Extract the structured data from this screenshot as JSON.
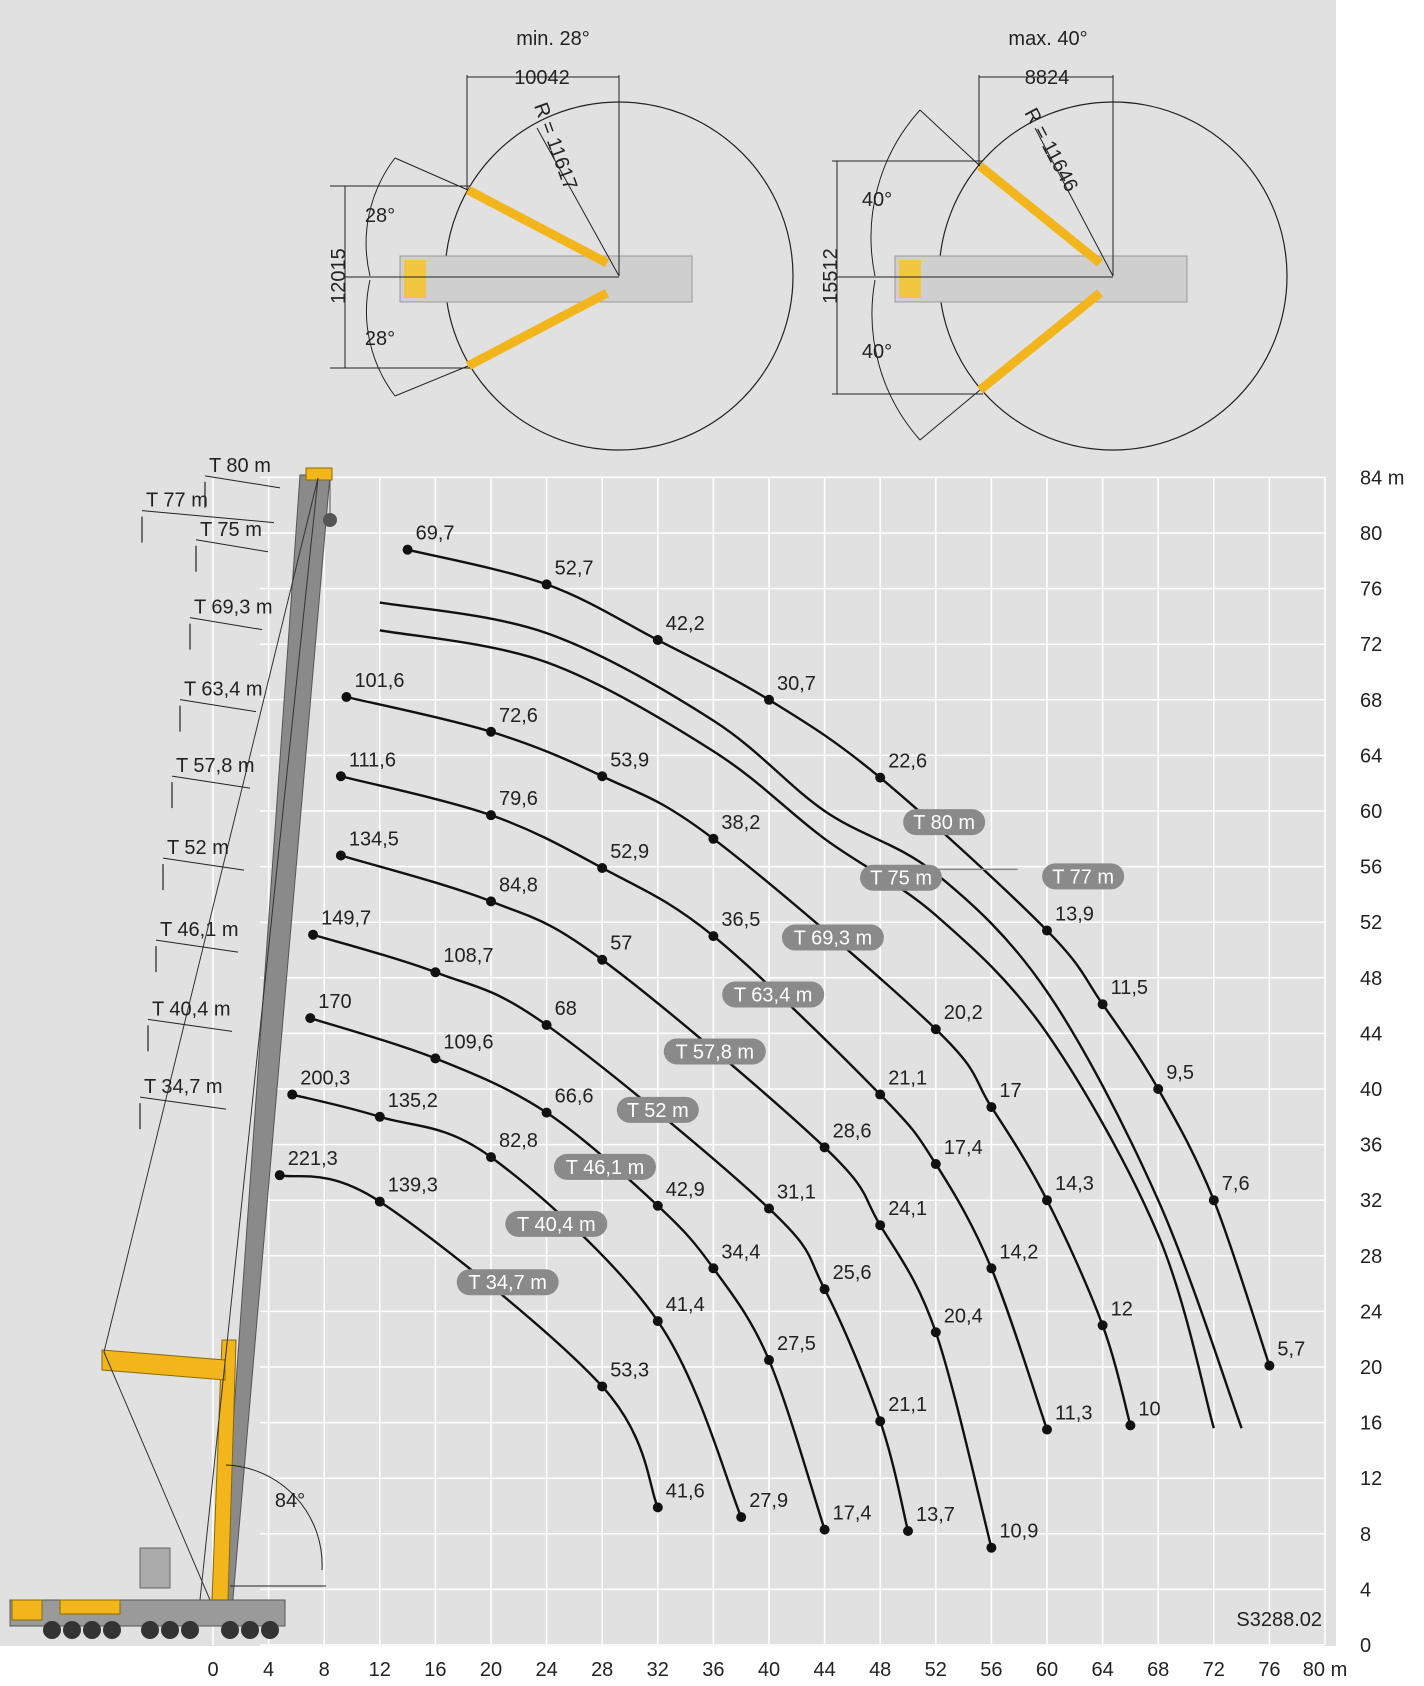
{
  "drawing_id": "S3288.02",
  "top_views": [
    {
      "angle_label": "min. 28°",
      "width_dim": "10042",
      "radius_label": "R = 11617",
      "height_dim": "12015",
      "upper_angle": "28°",
      "lower_angle": "28°"
    },
    {
      "angle_label": "max. 40°",
      "width_dim": "8824",
      "radius_label": "R = 11646",
      "height_dim": "15512",
      "upper_angle": "40°",
      "lower_angle": "40°"
    }
  ],
  "boom_angle": "84°",
  "boom_markers": [
    "T 80 m",
    "T 77 m",
    "T 75 m",
    "T 69,3 m",
    "T 63,4 m",
    "T 57,8 m",
    "T 52 m",
    "T 46,1 m",
    "T 40,4 m",
    "T 34,7 m"
  ],
  "chart_data": {
    "type": "line",
    "x_ticks": [
      "0",
      "4",
      "8",
      "12",
      "16",
      "20",
      "24",
      "28",
      "32",
      "36",
      "40",
      "44",
      "48",
      "52",
      "56",
      "60",
      "64",
      "68",
      "72",
      "76",
      "80 m"
    ],
    "y_ticks": [
      "0",
      "4",
      "8",
      "12",
      "16",
      "20",
      "24",
      "28",
      "32",
      "36",
      "40",
      "44",
      "48",
      "52",
      "56",
      "60",
      "64",
      "68",
      "72",
      "76",
      "80",
      "84 m"
    ],
    "xlim": [
      0,
      80
    ],
    "ylim": [
      0,
      84
    ],
    "series": [
      {
        "name": "T 80 m",
        "points": [
          [
            14,
            78.8,
            "69,7"
          ],
          [
            24,
            76.3,
            "52,7"
          ],
          [
            32,
            72.3,
            "42,2"
          ],
          [
            40,
            68.0,
            "30,7"
          ],
          [
            48,
            62.4,
            "22,6"
          ],
          [
            60,
            51.4,
            "13,9"
          ],
          [
            64,
            46.1,
            "11,5"
          ],
          [
            68,
            40.0,
            "9,5"
          ],
          [
            72,
            32.0,
            "7,6"
          ],
          [
            76,
            20.1,
            "5,7"
          ]
        ]
      },
      {
        "name": "T 77 m",
        "points": [
          [
            12,
            75.0,
            ""
          ],
          [
            24,
            72.8,
            ""
          ],
          [
            36,
            66.5,
            ""
          ],
          [
            44,
            60.0,
            ""
          ],
          [
            52,
            55.5,
            ""
          ],
          [
            60,
            47.0,
            ""
          ],
          [
            68,
            32.0,
            ""
          ],
          [
            74,
            15.6,
            ""
          ]
        ]
      },
      {
        "name": "T 75 m",
        "points": [
          [
            12,
            73.0,
            ""
          ],
          [
            24,
            70.7,
            ""
          ],
          [
            36,
            64.3,
            ""
          ],
          [
            44,
            58.0,
            ""
          ],
          [
            52,
            52.5,
            ""
          ],
          [
            60,
            44.0,
            ""
          ],
          [
            68,
            29.5,
            ""
          ],
          [
            72,
            15.6,
            ""
          ]
        ]
      },
      {
        "name": "T 69,3 m",
        "points": [
          [
            9.6,
            68.2,
            "101,6"
          ],
          [
            20,
            65.7,
            "72,6"
          ],
          [
            28,
            62.5,
            "53,9"
          ],
          [
            36,
            58.0,
            "38,2"
          ],
          [
            52,
            44.3,
            "20,2"
          ],
          [
            56,
            38.7,
            "17"
          ],
          [
            60,
            32.0,
            "14,3"
          ],
          [
            64,
            23.0,
            "12"
          ],
          [
            66,
            15.8,
            "10"
          ]
        ]
      },
      {
        "name": "T 63,4 m",
        "points": [
          [
            9.2,
            62.5,
            "111,6"
          ],
          [
            20,
            59.7,
            "79,6"
          ],
          [
            28,
            55.9,
            "52,9"
          ],
          [
            36,
            51.0,
            "36,5"
          ],
          [
            48,
            39.6,
            "21,1"
          ],
          [
            52,
            34.6,
            "17,4"
          ],
          [
            56,
            27.1,
            "14,2"
          ],
          [
            60,
            15.5,
            "11,3"
          ]
        ]
      },
      {
        "name": "T 57,8 m",
        "points": [
          [
            9.2,
            56.8,
            "134,5"
          ],
          [
            20,
            53.5,
            "84,8"
          ],
          [
            28,
            49.3,
            "57"
          ],
          [
            44,
            35.8,
            "28,6"
          ],
          [
            48,
            30.2,
            "24,1"
          ],
          [
            52,
            22.5,
            "20,4"
          ],
          [
            56,
            7.0,
            "10,9"
          ]
        ]
      },
      {
        "name": "T 52 m",
        "points": [
          [
            7.2,
            51.1,
            "149,7"
          ],
          [
            16,
            48.4,
            "108,7"
          ],
          [
            24,
            44.6,
            "68"
          ],
          [
            40,
            31.4,
            "31,1"
          ],
          [
            44,
            25.6,
            "25,6"
          ],
          [
            48,
            16.1,
            "21,1"
          ],
          [
            50,
            8.2,
            "13,7"
          ]
        ]
      },
      {
        "name": "T 46,1 m",
        "points": [
          [
            7.0,
            45.1,
            "170"
          ],
          [
            16,
            42.2,
            "109,6"
          ],
          [
            24,
            38.3,
            "66,6"
          ],
          [
            32,
            31.6,
            "42,9"
          ],
          [
            36,
            27.1,
            "34,4"
          ],
          [
            40,
            20.5,
            "27,5"
          ],
          [
            44,
            8.3,
            "17,4"
          ]
        ]
      },
      {
        "name": "T 40,4 m",
        "points": [
          [
            5.7,
            39.6,
            "200,3"
          ],
          [
            12,
            38.0,
            "135,2"
          ],
          [
            20,
            35.1,
            "82,8"
          ],
          [
            32,
            23.3,
            "41,4"
          ],
          [
            38,
            9.2,
            "27,9"
          ]
        ]
      },
      {
        "name": "T 34,7 m",
        "points": [
          [
            4.8,
            33.8,
            "221,3"
          ],
          [
            12,
            31.9,
            "139,3"
          ],
          [
            28,
            18.6,
            "53,3"
          ],
          [
            32,
            9.9,
            "41,6"
          ]
        ]
      }
    ],
    "curve_labels": [
      {
        "text": "T 80 m",
        "x": 52.6,
        "y": 59.2
      },
      {
        "text": "T 77 m",
        "x": 62.6,
        "y": 55.3
      },
      {
        "text": "T 75 m",
        "x": 49.5,
        "y": 55.2
      },
      {
        "text": "T 69,3 m",
        "x": 44.6,
        "y": 50.9
      },
      {
        "text": "T 63,4 m",
        "x": 40.3,
        "y": 46.8
      },
      {
        "text": "T 57,8 m",
        "x": 36.1,
        "y": 42.7
      },
      {
        "text": "T 52 m",
        "x": 32.0,
        "y": 38.5
      },
      {
        "text": "T 46,1 m",
        "x": 28.2,
        "y": 34.4
      },
      {
        "text": "T 40,4 m",
        "x": 24.7,
        "y": 30.3
      },
      {
        "text": "T 34,7 m",
        "x": 21.2,
        "y": 26.1
      }
    ]
  },
  "colors": {
    "panel": "#e1e1e1",
    "grid": "#ffffff",
    "curve": "#111111",
    "pill": "#8a8a8a",
    "crane": "#f2b51c",
    "boom_gray": "#7a7a7a"
  }
}
